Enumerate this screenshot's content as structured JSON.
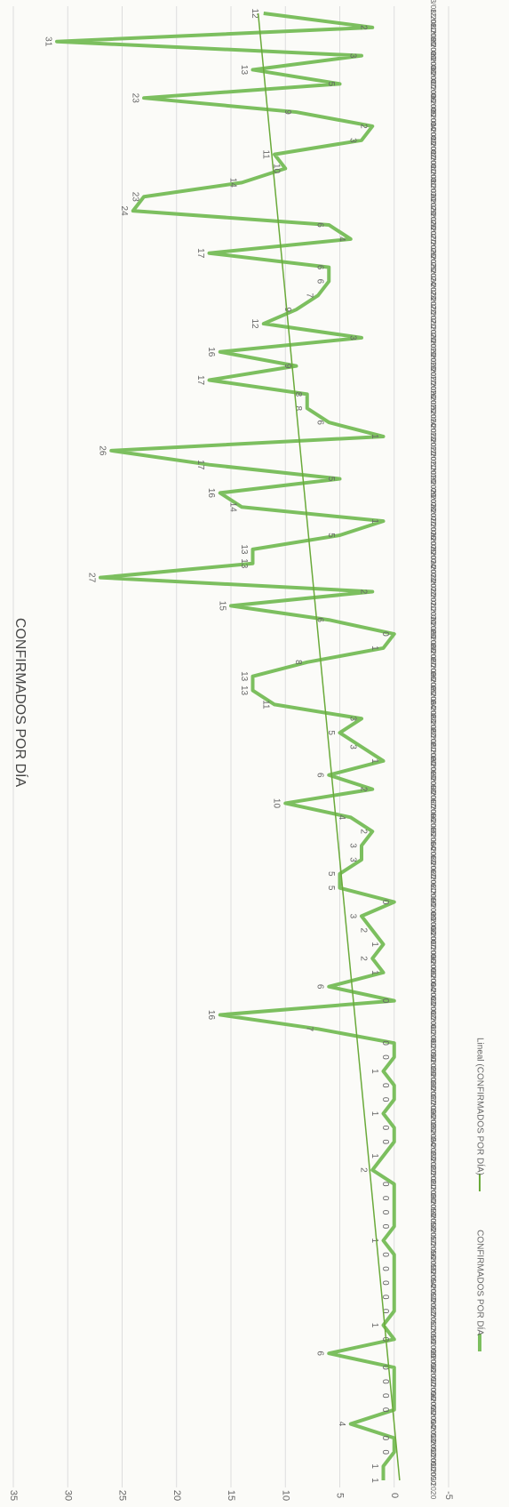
{
  "chart_data": {
    "type": "line",
    "title": "CONFIRMADOS POR DÍA",
    "categories": [
      "01/05/2020",
      "02/05/2020",
      "03/05/2020",
      "04/05/2020",
      "05/05/2020",
      "06/05/2020",
      "07/05/2020",
      "08/05/2020",
      "09/05/2020",
      "10/05/2020",
      "11/05/2020",
      "12/05/2020",
      "13/05/2020",
      "14/05/2020",
      "15/05/2020",
      "16/05/2020",
      "17/05/2020",
      "18/05/2020",
      "19/05/2020",
      "20/05/2020",
      "21/05/2020",
      "22/05/2020",
      "23/05/2020",
      "24/05/2020",
      "25/05/2020",
      "26/05/2020",
      "27/05/2020",
      "28/05/2020",
      "29/05/2020",
      "30/05/2020",
      "31/05/2020",
      "01/06/2020",
      "02/06/2020",
      "03/06/2020",
      "04/06/2020",
      "05/06/2020",
      "06/06/2020",
      "07/06/2020",
      "08/06/2020",
      "09/06/2020",
      "10/06/2020",
      "11/06/2020",
      "12/06/2020",
      "13/06/2020",
      "14/06/2020",
      "15/06/2020",
      "16/06/2020",
      "17/06/2020",
      "18/06/2020",
      "19/06/2020",
      "20/06/2020",
      "21/06/2020",
      "22/06/2020",
      "23/06/2020",
      "24/06/2020",
      "25/06/2020",
      "26/06/2020",
      "27/06/2020",
      "28/06/2020",
      "29/06/2020",
      "30/06/2020",
      "01/07/2020",
      "02/07/2020",
      "03/07/2020",
      "04/07/2020",
      "05/07/2020",
      "06/07/2020",
      "07/07/2020",
      "08/07/2020",
      "09/07/2020",
      "10/07/2020",
      "11/07/2020",
      "12/07/2020",
      "13/07/2020",
      "14/07/2020",
      "15/07/2020",
      "16/07/2020",
      "17/07/2020",
      "18/07/2020",
      "19/07/2020",
      "20/07/2020",
      "21/07/2020",
      "22/07/2020",
      "23/07/2020",
      "24/07/2020",
      "25/07/2020",
      "26/07/2020",
      "27/07/2020",
      "28/07/2020",
      "29/07/2020",
      "30/07/2020",
      "31/07/2020",
      "01/08/2020",
      "02/08/2020",
      "03/08/2020",
      "04/08/2020",
      "05/08/2020",
      "06/08/2020",
      "07/08/2020",
      "08/08/2020",
      "09/08/2020",
      "10/08/2020",
      "11/08/2020",
      "12/08/2020",
      "13/08/2020"
    ],
    "series": [
      {
        "name": "CONFIRMADOS POR DÍA",
        "color": "#7cbf5f",
        "values": [
          1,
          1,
          0,
          0,
          4,
          0,
          0,
          0,
          0,
          6,
          0,
          1,
          0,
          0,
          0,
          0,
          0,
          1,
          0,
          0,
          0,
          0,
          2,
          1,
          0,
          0,
          1,
          0,
          0,
          1,
          0,
          0,
          7,
          16,
          0,
          6,
          1,
          2,
          1,
          2,
          3,
          0,
          5,
          5,
          3,
          3,
          2,
          4,
          10,
          2,
          6,
          1,
          3,
          5,
          3,
          11,
          13,
          13,
          8,
          1,
          0,
          6,
          15,
          2,
          27,
          13,
          13,
          5,
          1,
          14,
          16,
          5,
          17,
          26,
          1,
          6,
          8,
          8,
          17,
          9,
          16,
          3,
          12,
          9,
          7,
          6,
          6,
          17,
          4,
          6,
          24,
          23,
          14,
          10,
          11,
          3,
          2,
          9,
          23,
          5,
          13,
          3,
          31,
          2,
          12
        ]
      }
    ],
    "trendline": {
      "name": "Lineal (CONFIRMADOS POR DÍA)",
      "color": "#6aaa3a",
      "values": [
        -0.5,
        12.5
      ]
    },
    "ylim": [
      -5,
      35
    ],
    "yticks": [
      -5,
      0,
      5,
      10,
      15,
      20,
      25,
      30,
      35
    ],
    "grid": true
  }
}
